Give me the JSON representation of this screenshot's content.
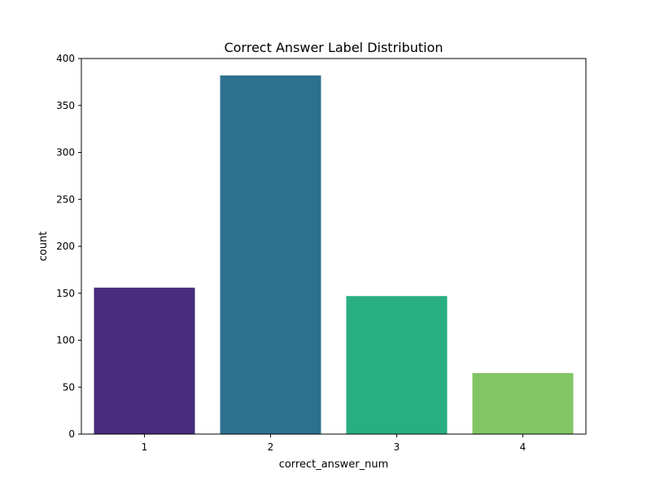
{
  "chart_data": {
    "type": "bar",
    "title": "Correct Answer Label Distribution",
    "xlabel": "correct_answer_num",
    "ylabel": "count",
    "categories": [
      "1",
      "2",
      "3",
      "4"
    ],
    "values": [
      156,
      382,
      147,
      65
    ],
    "ylim": [
      0,
      400
    ],
    "yticks": [
      0,
      50,
      100,
      150,
      200,
      250,
      300,
      350,
      400
    ],
    "colors": [
      "#472d7b",
      "#2c718e",
      "#28ae80",
      "#81c564"
    ],
    "grid": false,
    "legend": false
  }
}
